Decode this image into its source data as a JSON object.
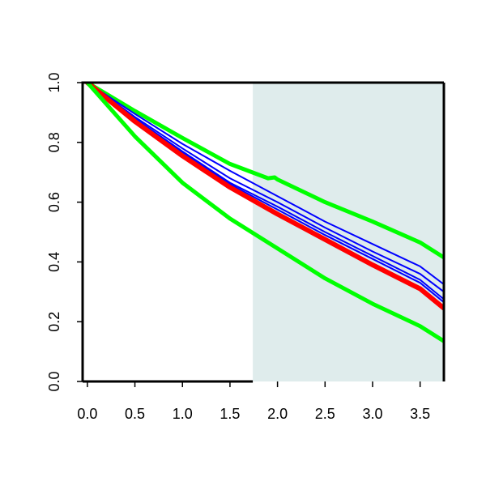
{
  "chart_data": {
    "type": "line",
    "title": "",
    "xlabel": "",
    "ylabel": "",
    "xlim": [
      -0.05,
      3.75
    ],
    "ylim": [
      0.0,
      1.0
    ],
    "x_ticks": [
      0.0,
      0.5,
      1.0,
      1.5,
      2.0,
      2.5,
      3.0,
      3.5
    ],
    "x_tick_labels": [
      "0.0",
      "0.5",
      "1.0",
      "1.5",
      "2.0",
      "2.5",
      "3.0",
      "3.5"
    ],
    "y_ticks": [
      0.0,
      0.2,
      0.4,
      0.6,
      0.8,
      1.0
    ],
    "y_tick_labels": [
      "0.0",
      "0.2",
      "0.4",
      "0.6",
      "0.8",
      "1.0"
    ],
    "grid": false,
    "shaded_region": {
      "x_from": 1.74,
      "x_to": 3.75,
      "color": "#dfecec"
    },
    "series": [
      {
        "role": "upper-band",
        "color": "#00ff00",
        "width": 5,
        "x": [
          0.0,
          0.5,
          1.0,
          1.5,
          1.9,
          1.97,
          2.0,
          2.5,
          3.0,
          3.5,
          3.75
        ],
        "y": [
          1.0,
          0.905,
          0.815,
          0.728,
          0.68,
          0.683,
          0.676,
          0.6,
          0.535,
          0.465,
          0.415
        ]
      },
      {
        "role": "blue-1",
        "color": "#0000ff",
        "width": 2,
        "x": [
          0.0,
          0.5,
          1.0,
          1.5,
          2.0,
          2.5,
          3.0,
          3.5,
          3.75
        ],
        "y": [
          1.0,
          0.895,
          0.795,
          0.705,
          0.62,
          0.535,
          0.46,
          0.385,
          0.325
        ]
      },
      {
        "role": "blue-2",
        "color": "#0000ff",
        "width": 2,
        "x": [
          0.0,
          0.5,
          1.0,
          1.5,
          2.0,
          2.5,
          3.0,
          3.5,
          3.75
        ],
        "y": [
          1.0,
          0.885,
          0.78,
          0.68,
          0.6,
          0.515,
          0.435,
          0.36,
          0.3
        ]
      },
      {
        "role": "blue-3",
        "color": "#0000ff",
        "width": 2,
        "x": [
          0.0,
          0.5,
          1.0,
          1.5,
          2.0,
          2.5,
          3.0,
          3.5,
          3.75
        ],
        "y": [
          1.0,
          0.88,
          0.77,
          0.665,
          0.585,
          0.5,
          0.42,
          0.34,
          0.275
        ]
      },
      {
        "role": "blue-4",
        "color": "#0000ff",
        "width": 2,
        "x": [
          0.0,
          0.5,
          1.0,
          1.5,
          2.0,
          2.5,
          3.0,
          3.5,
          3.75
        ],
        "y": [
          1.0,
          0.875,
          0.765,
          0.66,
          0.575,
          0.49,
          0.41,
          0.33,
          0.265
        ]
      },
      {
        "role": "estimate",
        "color": "#ff0000",
        "width": 6,
        "x": [
          0.0,
          0.5,
          1.0,
          1.5,
          2.0,
          2.5,
          3.0,
          3.5,
          3.75
        ],
        "y": [
          1.0,
          0.87,
          0.755,
          0.65,
          0.56,
          0.475,
          0.39,
          0.31,
          0.245
        ]
      },
      {
        "role": "lower-band",
        "color": "#00ff00",
        "width": 5,
        "x": [
          0.0,
          0.5,
          1.0,
          1.5,
          2.0,
          2.5,
          3.0,
          3.5,
          3.75
        ],
        "y": [
          1.0,
          0.82,
          0.665,
          0.545,
          0.445,
          0.345,
          0.26,
          0.185,
          0.135
        ]
      }
    ]
  }
}
